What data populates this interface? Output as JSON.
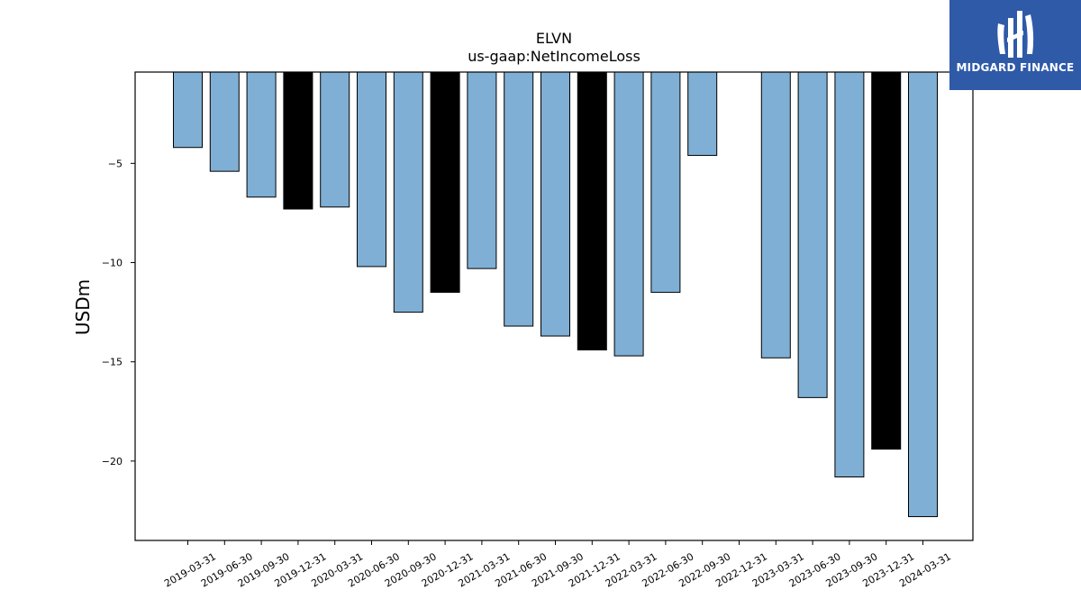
{
  "chart_data": {
    "type": "bar",
    "title": "ELVN",
    "subtitle": "us-gaap:NetIncomeLoss",
    "xlabel": "",
    "ylabel": "USDm",
    "ylim": [
      -24.0,
      -0.4
    ],
    "yticks": [
      -5,
      -10,
      -15,
      -20
    ],
    "ytick_labels": [
      "−5",
      "−10",
      "−15",
      "−20"
    ],
    "categories": [
      "2019-03-31",
      "2019-06-30",
      "2019-09-30",
      "2019-12-31",
      "2020-03-31",
      "2020-06-30",
      "2020-09-30",
      "2020-12-31",
      "2021-03-31",
      "2021-06-30",
      "2021-09-30",
      "2021-12-31",
      "2022-03-31",
      "2022-06-30",
      "2022-09-30",
      "2022-12-31",
      "2023-03-31",
      "2023-06-30",
      "2023-09-30",
      "2023-12-31",
      "2024-03-31"
    ],
    "values": [
      -4.2,
      -5.4,
      -6.7,
      -7.3,
      -7.2,
      -10.2,
      -12.5,
      -11.5,
      -10.3,
      -13.2,
      -13.7,
      -14.4,
      -14.7,
      -11.5,
      -4.6,
      null,
      -14.8,
      -16.8,
      -20.8,
      -19.4,
      -22.8
    ],
    "bar_colors": [
      "#7fafd4",
      "#7fafd4",
      "#7fafd4",
      "#000000",
      "#7fafd4",
      "#7fafd4",
      "#7fafd4",
      "#000000",
      "#7fafd4",
      "#7fafd4",
      "#7fafd4",
      "#000000",
      "#7fafd4",
      "#7fafd4",
      "#7fafd4",
      "#7fafd4",
      "#7fafd4",
      "#7fafd4",
      "#7fafd4",
      "#000000",
      "#7fafd4"
    ],
    "grid": false,
    "legend": "none"
  },
  "logo": {
    "text": "MIDGARD FINANCE",
    "background": "#2f5aa8"
  }
}
